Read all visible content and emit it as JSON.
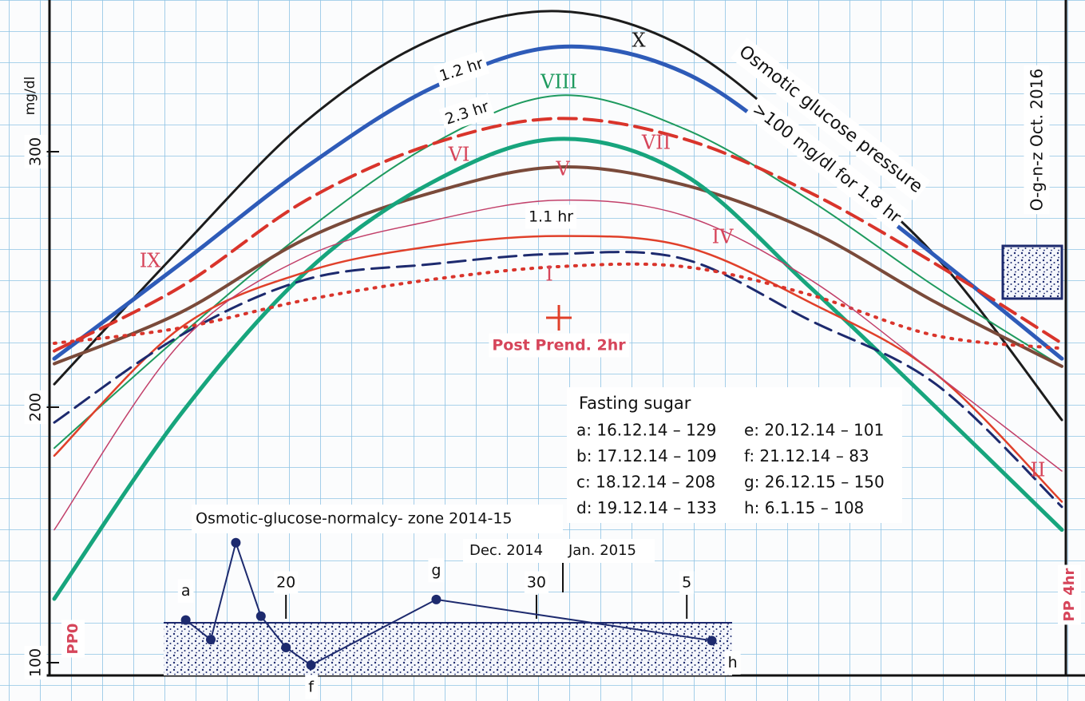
{
  "chart_data": [
    {
      "type": "line",
      "y_label": "mg/dl",
      "categories": [
        "PP0",
        null,
        null,
        null,
        "Post Prend. 2hr",
        null,
        null,
        null,
        "PP 4hr"
      ],
      "ylim": [
        95,
        360
      ],
      "yticks": [
        100,
        200,
        300
      ],
      "grid": true,
      "series": [
        {
          "name": "X",
          "color": "#1c1c1c",
          "style": "solid",
          "width": 3,
          "values": [
            209,
            262,
            312,
            344,
            355,
            341,
            303,
            259,
            195
          ]
        },
        {
          "name": "IX",
          "color": "#2e5bb8",
          "style": "solid",
          "width": 5,
          "values": [
            219,
            256,
            294,
            325,
            341,
            331,
            297,
            259,
            219
          ]
        },
        {
          "name": "VIII",
          "color": "#1e9a5e",
          "style": "solid",
          "width": 2,
          "values": [
            184,
            228,
            269,
            303,
            322,
            309,
            281,
            247,
            216
          ]
        },
        {
          "name": "VII",
          "color": "#d9342b",
          "style": "dashed",
          "width": 4,
          "values": [
            222,
            247,
            281,
            303,
            313,
            305,
            284,
            256,
            225
          ]
        },
        {
          "name": "V",
          "color": "#7a4a3a",
          "style": "solid",
          "width": 4,
          "values": [
            217,
            237,
            266,
            284,
            294,
            287,
            269,
            241,
            216
          ]
        },
        {
          "name": "VI",
          "color": "#17a57d",
          "style": "solid",
          "width": 5,
          "values": [
            125,
            197,
            253,
            288,
            305,
            291,
            247,
            200,
            152
          ]
        },
        {
          "name": "II",
          "color": "#e0402a",
          "style": "solid",
          "width": 2.5,
          "values": [
            181,
            231,
            253,
            263,
            267,
            263,
            241,
            213,
            163
          ]
        },
        {
          "name": "I",
          "color": "#1d2a6e",
          "style": "dashed",
          "width": 3,
          "values": [
            194,
            228,
            250,
            256,
            260,
            258,
            234,
            209,
            161
          ]
        },
        {
          "color": "#d9342b",
          "style": "dotted",
          "width": 4,
          "values": [
            225,
            231,
            242,
            250,
            255,
            255,
            244,
            228,
            223
          ]
        },
        {
          "name": "IV",
          "color": "#c2406a",
          "style": "solid",
          "width": 1.5,
          "values": [
            152,
            225,
            259,
            273,
            281,
            275,
            250,
            213,
            175
          ]
        }
      ],
      "annotations": [
        "1.2 hr",
        "2.3 hr",
        "1.1 hr",
        "Osmotic glucose pressure",
        ">100 mg/dl for 1.8 hr",
        "O-g-n-z  Oct.  2016"
      ]
    },
    {
      "type": "line",
      "title": "Osmotic-glucose-normalcy- zone 2014-15",
      "x": [
        16,
        17,
        18,
        19,
        20,
        21,
        26,
        37
      ],
      "values": [
        129,
        109,
        208,
        133,
        101,
        83,
        150,
        108
      ],
      "point_labels": [
        "a",
        null,
        null,
        null,
        null,
        "f",
        "g",
        "h"
      ],
      "xlim": [
        9,
        46
      ],
      "xticks": [
        20,
        30,
        {
          "value": 36,
          "label": "5"
        }
      ],
      "ylim": [
        70,
        220
      ],
      "months": [
        "Dec. 2014",
        "Jan. 2015"
      ],
      "color": "#1d2a6e",
      "table": {
        "title": "Fasting sugar",
        "rows": [
          [
            "a:  16.12.14 – 129",
            "e:  20.12.14 – 101"
          ],
          [
            "b:  17.12.14 –  109",
            "f:  21.12.14 –  83"
          ],
          [
            "c:  18.12.14  – 208",
            "g:  26.12.15 – 150"
          ],
          [
            "d:  19.12.14 – 133",
            "h:  6.1.15  –  108"
          ]
        ]
      }
    }
  ]
}
